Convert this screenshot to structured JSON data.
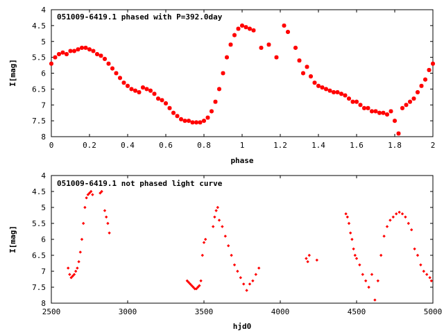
{
  "chart_data": [
    {
      "type": "scatter",
      "title": "051009-6419.1 phased with P=392.0day",
      "xlabel": "phase",
      "ylabel": "I[mag]",
      "xlim": [
        0,
        2
      ],
      "ylim": [
        8,
        4
      ],
      "y_inverted": true,
      "grid": false,
      "color": "#ff0000",
      "xticks": [
        "0",
        "0.2",
        "0.4",
        "0.6",
        "0.8",
        "1",
        "1.2",
        "1.4",
        "1.6",
        "1.8",
        "2"
      ],
      "yticks": [
        "4",
        "4.5",
        "5",
        "5.5",
        "6",
        "6.5",
        "7",
        "7.5",
        "8"
      ],
      "x": [
        0.0,
        0.02,
        0.04,
        0.06,
        0.08,
        0.1,
        0.12,
        0.14,
        0.16,
        0.18,
        0.2,
        0.22,
        0.24,
        0.26,
        0.28,
        0.3,
        0.32,
        0.34,
        0.36,
        0.38,
        0.4,
        0.42,
        0.44,
        0.46,
        0.48,
        0.5,
        0.52,
        0.54,
        0.56,
        0.58,
        0.6,
        0.62,
        0.64,
        0.66,
        0.68,
        0.7,
        0.72,
        0.74,
        0.76,
        0.78,
        0.8,
        0.82,
        0.84,
        0.86,
        0.88,
        0.9,
        0.92,
        0.94,
        0.96,
        0.98,
        1.0,
        1.02,
        1.04,
        1.06,
        1.1,
        1.14,
        1.18,
        1.22,
        1.24,
        1.28,
        1.3,
        1.32,
        1.34,
        1.36,
        1.38,
        1.4,
        1.42,
        1.44,
        1.46,
        1.48,
        1.5,
        1.52,
        1.54,
        1.56,
        1.58,
        1.6,
        1.62,
        1.64,
        1.66,
        1.68,
        1.7,
        1.72,
        1.74,
        1.76,
        1.78,
        1.8,
        1.82,
        1.84,
        1.86,
        1.88,
        1.9,
        1.92,
        1.94,
        1.96,
        1.98,
        2.0
      ],
      "y": [
        5.7,
        5.5,
        5.4,
        5.35,
        5.4,
        5.3,
        5.3,
        5.25,
        5.2,
        5.2,
        5.25,
        5.3,
        5.4,
        5.45,
        5.55,
        5.7,
        5.85,
        6.0,
        6.15,
        6.3,
        6.4,
        6.5,
        6.55,
        6.6,
        6.45,
        6.5,
        6.55,
        6.65,
        6.8,
        6.85,
        6.95,
        7.1,
        7.25,
        7.35,
        7.45,
        7.5,
        7.5,
        7.55,
        7.55,
        7.55,
        7.5,
        7.4,
        7.2,
        6.9,
        6.5,
        6.0,
        5.5,
        5.1,
        4.8,
        4.6,
        4.5,
        4.55,
        4.6,
        4.65,
        5.2,
        5.1,
        5.5,
        4.5,
        4.7,
        5.2,
        5.6,
        6.0,
        5.8,
        6.1,
        6.3,
        6.4,
        6.45,
        6.5,
        6.55,
        6.6,
        6.6,
        6.65,
        6.7,
        6.8,
        6.9,
        6.9,
        7.0,
        7.1,
        7.1,
        7.2,
        7.2,
        7.25,
        7.25,
        7.3,
        7.2,
        7.5,
        7.9,
        7.1,
        7.0,
        6.9,
        6.8,
        6.6,
        6.4,
        6.2,
        5.9,
        5.7
      ]
    },
    {
      "type": "scatter",
      "title": "051009-6419.1 not phased light curve",
      "xlabel": "hjd0",
      "ylabel": "I[mag]",
      "xlim": [
        2500,
        5000
      ],
      "ylim": [
        8,
        4
      ],
      "y_inverted": true,
      "grid": false,
      "color": "#ff0000",
      "xticks": [
        "2500",
        "3000",
        "3500",
        "4000",
        "4500",
        "5000"
      ],
      "yticks": [
        "4",
        "4.5",
        "5",
        "5.5",
        "6",
        "6.5",
        "7",
        "7.5",
        "8"
      ],
      "x": [
        2610,
        2620,
        2630,
        2640,
        2650,
        2660,
        2670,
        2680,
        2690,
        2700,
        2710,
        2720,
        2730,
        2740,
        2750,
        2760,
        2770,
        2820,
        2830,
        2850,
        2860,
        2870,
        2880,
        3390,
        3400,
        3410,
        3420,
        3430,
        3440,
        3450,
        3460,
        3470,
        3480,
        3490,
        3500,
        3510,
        3560,
        3570,
        3580,
        3590,
        3600,
        3620,
        3640,
        3660,
        3680,
        3700,
        3720,
        3740,
        3760,
        3780,
        3800,
        3820,
        3840,
        3860,
        4170,
        4180,
        4190,
        4240,
        4430,
        4440,
        4450,
        4460,
        4470,
        4480,
        4490,
        4500,
        4520,
        4540,
        4560,
        4580,
        4600,
        4620,
        4640,
        4660,
        4680,
        4700,
        4720,
        4740,
        4760,
        4780,
        4800,
        4820,
        4840,
        4860,
        4880,
        4900,
        4920,
        4940,
        4960,
        4980,
        4990
      ],
      "y": [
        6.9,
        7.1,
        7.2,
        7.15,
        7.1,
        7.0,
        6.9,
        6.7,
        6.4,
        6.0,
        5.5,
        5.0,
        4.7,
        4.6,
        4.55,
        4.5,
        4.6,
        4.55,
        4.5,
        5.1,
        5.3,
        5.5,
        5.8,
        7.3,
        7.35,
        7.4,
        7.45,
        7.5,
        7.55,
        7.55,
        7.5,
        7.45,
        7.3,
        6.5,
        6.1,
        6.0,
        5.6,
        5.3,
        5.1,
        5.0,
        5.4,
        5.6,
        5.9,
        6.2,
        6.5,
        6.8,
        7.0,
        7.2,
        7.4,
        7.6,
        7.4,
        7.3,
        7.1,
        6.9,
        6.6,
        6.7,
        6.5,
        6.65,
        5.2,
        5.3,
        5.5,
        5.8,
        6.0,
        6.3,
        6.5,
        6.6,
        6.8,
        7.1,
        7.3,
        7.5,
        7.1,
        7.9,
        7.3,
        6.5,
        5.9,
        5.6,
        5.4,
        5.3,
        5.2,
        5.15,
        5.2,
        5.3,
        5.5,
        5.7,
        6.3,
        6.5,
        6.8,
        7.0,
        7.1,
        7.2,
        7.3
      ]
    }
  ]
}
